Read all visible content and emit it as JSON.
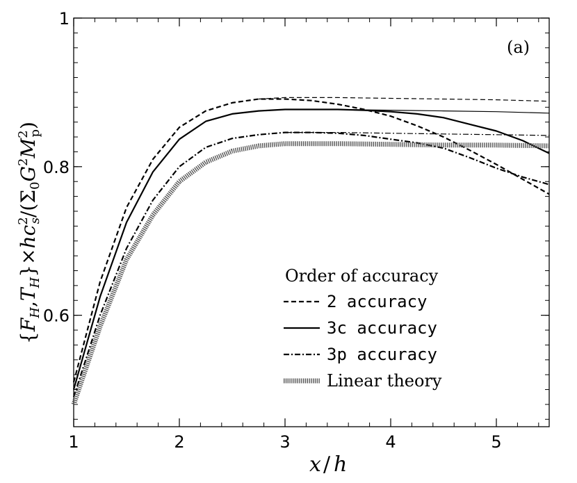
{
  "chart_data": {
    "type": "line",
    "panel_label": "(a)",
    "xlabel": "x/h",
    "ylabel": "{F_H, T_H} × h c_s² / (Σ₀ G² M_p²)",
    "xlim": [
      1,
      5.5
    ],
    "ylim": [
      0.45,
      1.0
    ],
    "x_ticks": [
      1,
      2,
      3,
      4,
      5
    ],
    "x_tick_labels": [
      "1",
      "2",
      "3",
      "4",
      "5"
    ],
    "y_ticks": [
      0.6,
      0.8,
      1.0
    ],
    "y_tick_labels": [
      "0.6",
      "0.8",
      "1"
    ],
    "grid": false,
    "legend": {
      "title": "Order of accuracy",
      "placement": "lower-right",
      "entries": [
        {
          "prefix": "2",
          "text": " accuracy",
          "style": "dashed"
        },
        {
          "prefix": "3c",
          "text": " accuracy",
          "style": "solid"
        },
        {
          "prefix": "3p",
          "text": " accuracy",
          "style": "dashdot"
        },
        {
          "prefix": "",
          "text": "Linear theory",
          "style": "dotted-thick"
        }
      ]
    },
    "series": [
      {
        "style": "dashed",
        "weight": "thick",
        "x": [
          1.0,
          1.25,
          1.5,
          1.75,
          2.0,
          2.25,
          2.5,
          2.75,
          3.0,
          3.25,
          3.5,
          3.75,
          4.0,
          4.25,
          4.5,
          4.75,
          5.0,
          5.25,
          5.5
        ],
        "y": [
          0.51,
          0.645,
          0.745,
          0.81,
          0.853,
          0.875,
          0.886,
          0.891,
          0.891,
          0.889,
          0.884,
          0.877,
          0.868,
          0.855,
          0.84,
          0.822,
          0.803,
          0.783,
          0.763
        ]
      },
      {
        "style": "dashed",
        "weight": "thin",
        "x": [
          2.75,
          3.0,
          3.5,
          4.0,
          4.5,
          5.0,
          5.5
        ],
        "y": [
          0.891,
          0.893,
          0.893,
          0.892,
          0.891,
          0.89,
          0.888
        ]
      },
      {
        "style": "solid",
        "weight": "thick",
        "x": [
          1.0,
          1.25,
          1.5,
          1.75,
          2.0,
          2.25,
          2.5,
          2.75,
          3.0,
          3.25,
          3.5,
          3.75,
          4.0,
          4.25,
          4.5,
          4.75,
          5.0,
          5.25,
          5.5
        ],
        "y": [
          0.5,
          0.625,
          0.725,
          0.793,
          0.837,
          0.861,
          0.871,
          0.875,
          0.877,
          0.877,
          0.877,
          0.876,
          0.874,
          0.871,
          0.866,
          0.857,
          0.848,
          0.835,
          0.818
        ]
      },
      {
        "style": "solid",
        "weight": "thin",
        "x": [
          3.5,
          4.0,
          4.5,
          5.0,
          5.5
        ],
        "y": [
          0.877,
          0.876,
          0.875,
          0.874,
          0.872
        ]
      },
      {
        "style": "dashdot",
        "weight": "thick",
        "x": [
          1.0,
          1.25,
          1.5,
          1.75,
          2.0,
          2.25,
          2.5,
          2.75,
          3.0,
          3.25,
          3.5,
          3.75,
          4.0,
          4.25,
          4.5,
          4.75,
          5.0,
          5.25,
          5.5
        ],
        "y": [
          0.49,
          0.6,
          0.69,
          0.755,
          0.8,
          0.826,
          0.838,
          0.843,
          0.846,
          0.846,
          0.845,
          0.842,
          0.837,
          0.832,
          0.825,
          0.812,
          0.798,
          0.786,
          0.776
        ]
      },
      {
        "style": "dashdot",
        "weight": "thin",
        "x": [
          3.0,
          3.5,
          4.0,
          4.5,
          5.0,
          5.5
        ],
        "y": [
          0.846,
          0.846,
          0.845,
          0.844,
          0.843,
          0.842
        ]
      },
      {
        "style": "dotted-thick",
        "weight": "thick",
        "x": [
          1.0,
          1.25,
          1.5,
          1.75,
          2.0,
          2.25,
          2.5,
          2.75,
          3.0,
          3.5,
          4.0,
          4.5,
          5.0,
          5.5
        ],
        "y": [
          0.48,
          0.585,
          0.675,
          0.735,
          0.78,
          0.806,
          0.821,
          0.828,
          0.831,
          0.831,
          0.83,
          0.829,
          0.829,
          0.828
        ]
      }
    ]
  }
}
